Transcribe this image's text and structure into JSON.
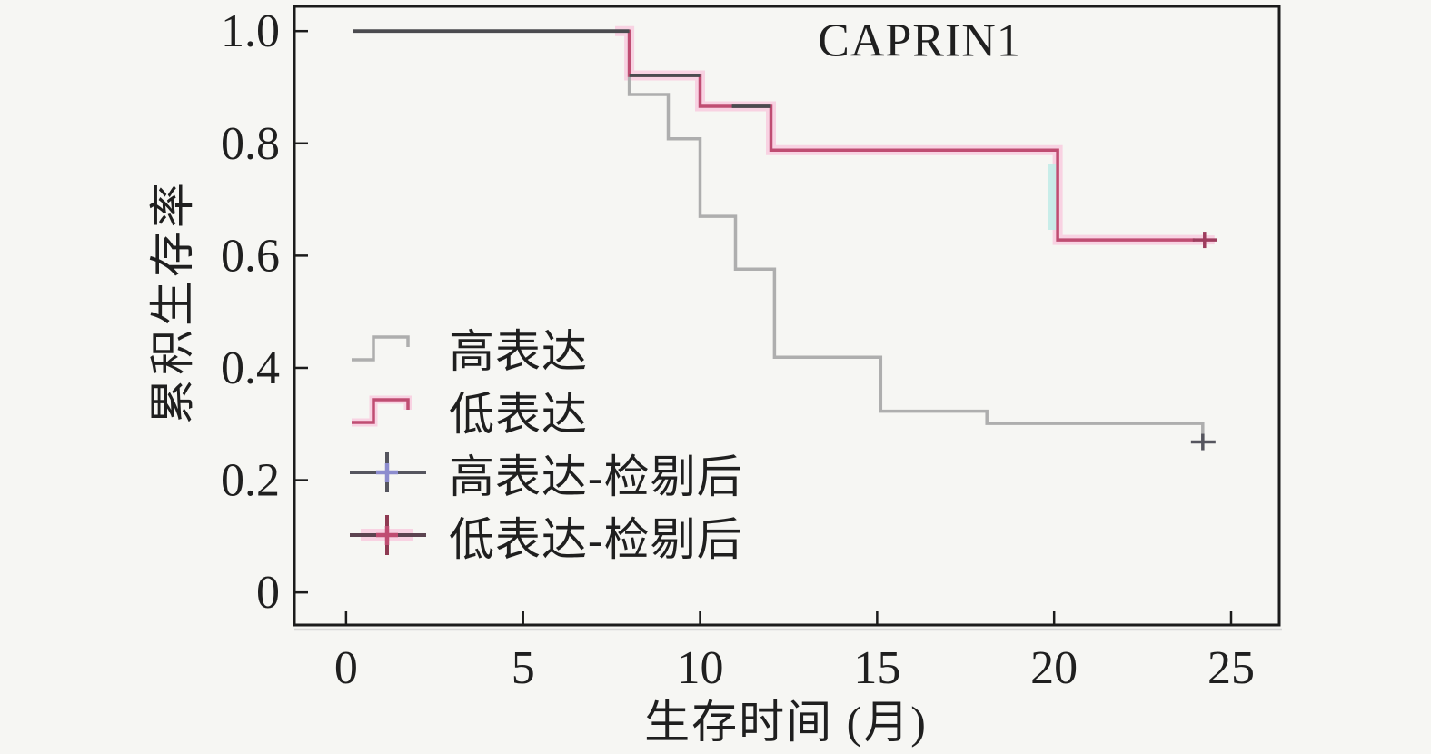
{
  "title": "CAPRIN1",
  "axes": {
    "x_label": "生存时间 (月)",
    "y_label": "累积生存率"
  },
  "legend": {
    "items": [
      {
        "label": "高表达",
        "symbol": "gray-step-icon"
      },
      {
        "label": "低表达",
        "symbol": "crimson-step-icon"
      },
      {
        "label": "高表达-检剔后",
        "symbol": "blue-plus-icon"
      },
      {
        "label": "低表达-检剔后",
        "symbol": "crimson-plus-icon"
      }
    ]
  },
  "colors": {
    "background": "#f6f6f3",
    "axis": "#1b1b1b",
    "axis_shadow": "#d8d8d8",
    "text": "#1f1f1f",
    "high_curve": "#aeaeae",
    "low_curve": "#bf4d72",
    "low_halo": "#f8d2e2",
    "overlap_dark": "#4b4b4f",
    "high_censor": "#55555e",
    "high_censor_center": "#8c8cce",
    "low_censor": "#9e3d5e",
    "artifact_teal": "#c4ede8"
  },
  "chart_data": {
    "type": "line",
    "subtype": "kaplan-meier-step",
    "title": "CAPRIN1",
    "xlabel": "生存时间 (月)",
    "ylabel": "累积生存率",
    "xlim": [
      -1.46,
      26.36
    ],
    "ylim": [
      -0.058,
      1.044
    ],
    "x_ticks": [
      0,
      5,
      10,
      15,
      20,
      25
    ],
    "x_tick_labels": [
      "0",
      "5",
      "10",
      "15",
      "20",
      "25"
    ],
    "y_ticks": [
      1.0,
      0.8,
      0.6,
      0.4,
      0.2,
      0
    ],
    "y_tick_labels": [
      "1.0",
      "0.8",
      "0.6",
      "0.4",
      "0.2",
      "0"
    ],
    "grid": false,
    "legend_position": "center-left",
    "series": [
      {
        "name": "高表达",
        "points": [
          [
            0.2,
            1.0
          ],
          [
            8,
            1.0
          ],
          [
            8,
            0.887
          ],
          [
            9.1,
            0.887
          ],
          [
            9.1,
            0.808
          ],
          [
            10,
            0.808
          ],
          [
            10,
            0.67
          ],
          [
            11,
            0.67
          ],
          [
            11,
            0.576
          ],
          [
            12.1,
            0.576
          ],
          [
            12.1,
            0.419
          ],
          [
            15.1,
            0.419
          ],
          [
            15.1,
            0.323
          ],
          [
            18.1,
            0.323
          ],
          [
            18.1,
            0.301
          ],
          [
            24.2,
            0.301
          ],
          [
            24.2,
            0.268
          ]
        ],
        "censor_marks": [
          [
            24.2,
            0.268
          ]
        ]
      },
      {
        "name": "低表达",
        "points": [
          [
            0.2,
            1.0
          ],
          [
            8,
            1.0
          ],
          [
            8,
            0.921
          ],
          [
            10,
            0.921
          ],
          [
            10,
            0.866
          ],
          [
            12,
            0.866
          ],
          [
            12,
            0.788
          ],
          [
            20.1,
            0.788
          ],
          [
            20.1,
            0.628
          ],
          [
            24.25,
            0.628
          ]
        ],
        "censor_marks": [
          [
            24.25,
            0.628
          ]
        ],
        "halo_from_x": 7.6,
        "dark_overlap_segments": [
          [
            [
              0.2,
              1.0
            ],
            [
              8,
              1.0
            ]
          ],
          [
            [
              8,
              0.921
            ],
            [
              10,
              0.921
            ]
          ],
          [
            [
              10.9,
              0.866
            ],
            [
              12,
              0.866
            ]
          ]
        ]
      }
    ],
    "artifact_line": {
      "x": 19.94,
      "y1": 0.646,
      "y2": 0.764
    }
  }
}
